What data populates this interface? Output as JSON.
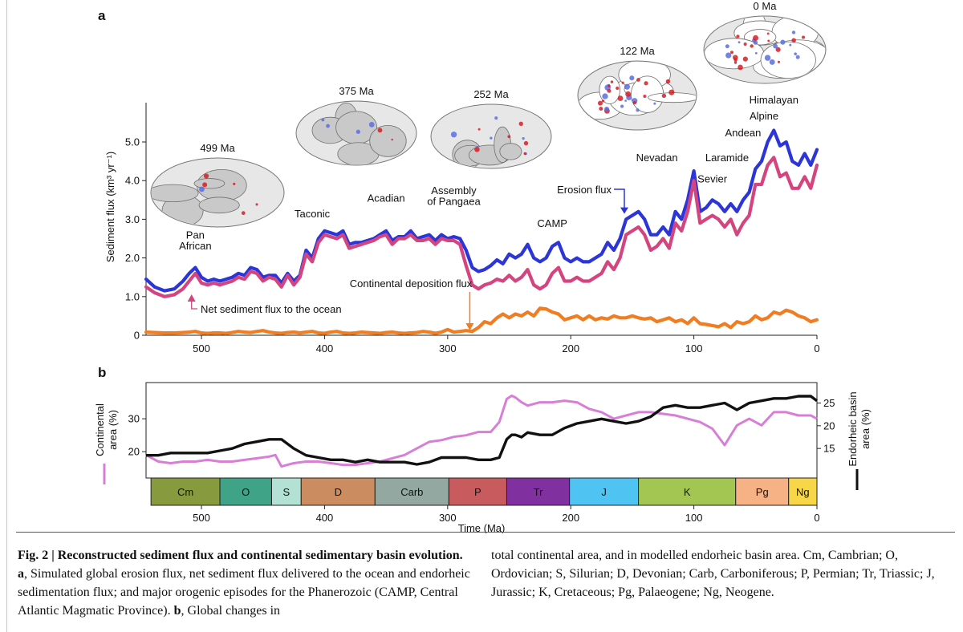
{
  "caption": {
    "lead": "Fig. 2 | Reconstructed sediment flux and continental sedimentary basin evolution.",
    "part_a_label": "a",
    "part_a_text": ", Simulated global erosion flux, net sediment flux delivered to the ocean and endorheic sedimentation flux; and major orogenic episodes for the Phanerozoic (CAMP, Central Atlantic Magmatic Province).",
    "part_b_label": "b",
    "part_b_text": ", Global changes in",
    "continued": "total continental area, and in modelled endorheic basin area. Cm, Cambrian; O, Ordovician; S, Silurian; D, Devonian; Carb, Carboniferous; P, Permian; Tr, Triassic; J, Jurassic; K, Cretaceous; Pg, Palaeogene; Ng, Neogene."
  },
  "chart_data": [
    {
      "panel": "a",
      "type": "line",
      "ylabel": "Sediment flux (km³ yr⁻¹)",
      "xlim": [
        545,
        0
      ],
      "ylim": [
        0,
        5.5
      ],
      "yticks": [
        "0",
        "1.0",
        "2.0",
        "3.0",
        "4.0",
        "5.0"
      ],
      "ytick_values": [
        0,
        1,
        2,
        3,
        4,
        5
      ],
      "xticks": [
        "500",
        "400",
        "300",
        "200",
        "100",
        "0"
      ],
      "xtick_values": [
        500,
        400,
        300,
        200,
        100,
        0
      ],
      "x": [
        545,
        538,
        530,
        522,
        515,
        510,
        505,
        500,
        495,
        490,
        485,
        480,
        475,
        470,
        465,
        460,
        455,
        450,
        445,
        440,
        435,
        430,
        425,
        420,
        415,
        410,
        405,
        400,
        395,
        390,
        385,
        380,
        375,
        370,
        365,
        360,
        355,
        350,
        345,
        340,
        335,
        330,
        325,
        320,
        315,
        310,
        305,
        300,
        295,
        290,
        285,
        280,
        275,
        270,
        265,
        260,
        255,
        250,
        245,
        240,
        235,
        230,
        225,
        220,
        215,
        210,
        205,
        200,
        195,
        190,
        185,
        180,
        175,
        170,
        165,
        160,
        155,
        150,
        145,
        140,
        135,
        130,
        125,
        120,
        115,
        110,
        105,
        100,
        95,
        90,
        85,
        80,
        75,
        70,
        65,
        60,
        55,
        50,
        45,
        40,
        35,
        30,
        25,
        20,
        15,
        10,
        5,
        0
      ],
      "series": [
        {
          "name": "Erosion flux",
          "color": "#2b35d8",
          "values": [
            1.45,
            1.25,
            1.15,
            1.2,
            1.4,
            1.6,
            1.75,
            1.5,
            1.4,
            1.45,
            1.4,
            1.45,
            1.5,
            1.6,
            1.55,
            1.75,
            1.7,
            1.5,
            1.55,
            1.55,
            1.35,
            1.6,
            1.4,
            1.55,
            2.2,
            2.0,
            2.5,
            2.7,
            2.65,
            2.6,
            2.7,
            2.35,
            2.4,
            2.4,
            2.45,
            2.5,
            2.6,
            2.7,
            2.45,
            2.55,
            2.55,
            2.7,
            2.5,
            2.55,
            2.6,
            2.45,
            2.6,
            2.5,
            2.55,
            2.5,
            2.2,
            1.75,
            1.65,
            1.7,
            1.8,
            1.95,
            1.85,
            2.1,
            2.0,
            2.1,
            2.35,
            2.0,
            1.9,
            2.0,
            2.3,
            2.4,
            2.0,
            1.9,
            2.0,
            1.9,
            1.9,
            2.0,
            2.1,
            2.4,
            2.2,
            2.5,
            3.0,
            3.1,
            3.2,
            3.0,
            2.6,
            2.6,
            2.8,
            2.6,
            3.2,
            3.0,
            3.5,
            4.25,
            3.2,
            3.3,
            3.5,
            3.4,
            3.2,
            3.4,
            3.2,
            3.5,
            3.7,
            4.3,
            4.5,
            5.0,
            5.3,
            4.9,
            5.0,
            4.5,
            4.4,
            4.7,
            4.4,
            4.8
          ]
        },
        {
          "name": "Net sediment flux to the ocean",
          "color": "#d4457f",
          "values": [
            1.25,
            1.1,
            1.0,
            1.05,
            1.2,
            1.4,
            1.6,
            1.35,
            1.3,
            1.35,
            1.3,
            1.35,
            1.4,
            1.5,
            1.45,
            1.65,
            1.6,
            1.4,
            1.5,
            1.45,
            1.25,
            1.55,
            1.3,
            1.5,
            2.1,
            1.9,
            2.4,
            2.6,
            2.55,
            2.5,
            2.6,
            2.25,
            2.3,
            2.35,
            2.4,
            2.45,
            2.55,
            2.6,
            2.35,
            2.5,
            2.5,
            2.6,
            2.45,
            2.45,
            2.5,
            2.35,
            2.5,
            2.45,
            2.45,
            2.35,
            1.8,
            1.3,
            1.2,
            1.3,
            1.35,
            1.45,
            1.4,
            1.55,
            1.4,
            1.5,
            1.7,
            1.3,
            1.2,
            1.3,
            1.6,
            1.75,
            1.4,
            1.4,
            1.5,
            1.4,
            1.4,
            1.5,
            1.6,
            1.9,
            1.7,
            2.0,
            2.6,
            2.7,
            2.8,
            2.6,
            2.2,
            2.3,
            2.5,
            2.25,
            2.9,
            2.7,
            3.2,
            4.0,
            2.9,
            3.0,
            3.1,
            3.0,
            2.8,
            3.0,
            2.6,
            2.9,
            3.1,
            3.9,
            3.9,
            4.4,
            4.6,
            4.1,
            4.2,
            3.8,
            3.8,
            4.1,
            3.8,
            4.4
          ]
        },
        {
          "name": "Continental deposition flux",
          "color": "#f07d22",
          "values": [
            0.08,
            0.07,
            0.06,
            0.06,
            0.07,
            0.08,
            0.1,
            0.06,
            0.05,
            0.06,
            0.06,
            0.05,
            0.07,
            0.1,
            0.08,
            0.07,
            0.1,
            0.12,
            0.08,
            0.06,
            0.05,
            0.07,
            0.08,
            0.06,
            0.08,
            0.1,
            0.06,
            0.05,
            0.08,
            0.1,
            0.06,
            0.05,
            0.06,
            0.08,
            0.07,
            0.06,
            0.05,
            0.07,
            0.08,
            0.06,
            0.05,
            0.06,
            0.07,
            0.1,
            0.08,
            0.05,
            0.08,
            0.15,
            0.08,
            0.1,
            0.12,
            0.1,
            0.2,
            0.35,
            0.3,
            0.45,
            0.55,
            0.45,
            0.55,
            0.5,
            0.6,
            0.5,
            0.7,
            0.68,
            0.6,
            0.55,
            0.4,
            0.45,
            0.5,
            0.4,
            0.5,
            0.4,
            0.45,
            0.42,
            0.5,
            0.45,
            0.45,
            0.5,
            0.45,
            0.42,
            0.45,
            0.35,
            0.4,
            0.45,
            0.35,
            0.4,
            0.3,
            0.45,
            0.3,
            0.28,
            0.25,
            0.22,
            0.3,
            0.2,
            0.35,
            0.3,
            0.35,
            0.5,
            0.4,
            0.45,
            0.6,
            0.55,
            0.65,
            0.6,
            0.5,
            0.45,
            0.35,
            0.4
          ]
        }
      ],
      "labels": [
        {
          "text": "Pan",
          "x": 505,
          "y": 2.5
        },
        {
          "text": "African",
          "x": 505,
          "y": 2.22
        },
        {
          "text": "Taconic",
          "x": 410,
          "y": 3.05
        },
        {
          "text": "Acadian",
          "x": 350,
          "y": 3.45
        },
        {
          "text": "Assembly",
          "x": 295,
          "y": 3.65
        },
        {
          "text": "of Pangaea",
          "x": 295,
          "y": 3.37
        },
        {
          "text": "CAMP",
          "x": 215,
          "y": 2.8
        },
        {
          "text": "Nevadan",
          "x": 130,
          "y": 4.5
        },
        {
          "text": "Sevier",
          "x": 85,
          "y": 3.95
        },
        {
          "text": "Laramide",
          "x": 73,
          "y": 4.5
        },
        {
          "text": "Andean",
          "x": 60,
          "y": 5.15
        },
        {
          "text": "Alpine",
          "x": 43,
          "y": 5.58
        },
        {
          "text": "Himalayan",
          "x": 35,
          "y": 6.0
        }
      ],
      "annotations": [
        {
          "text": "Erosion flux",
          "arrow_to": [
            155,
            3.1
          ]
        },
        {
          "text": "Net sediment flux to the ocean",
          "arrow_to": [
            510,
            1.1
          ]
        },
        {
          "text": "Continental deposition flux",
          "arrow_to": [
            282,
            0.05
          ]
        }
      ],
      "maps": [
        {
          "label": "499 Ma",
          "x": 478,
          "y": 3.65
        },
        {
          "label": "375 Ma",
          "x": 357,
          "y": 5.2
        },
        {
          "label": "252 Ma",
          "x": 250,
          "y": 5.2
        },
        {
          "label": "122 Ma",
          "x": 140,
          "y": 6.65
        },
        {
          "label": "0 Ma",
          "x": 56,
          "y": 7.5
        }
      ]
    },
    {
      "panel": "b",
      "type": "line",
      "xlabel": "Time (Ma)",
      "ylabel_left": "Continental area (%)",
      "ylabel_right": "Endorheic basin area (%)",
      "xlim": [
        545,
        0
      ],
      "ylim_left": [
        12,
        41
      ],
      "yticks_left": [
        "20",
        "30"
      ],
      "ytick_values_left": [
        20,
        30
      ],
      "ylim_right": [
        8.5,
        29.5
      ],
      "yticks_right": [
        "15",
        "20",
        "25"
      ],
      "ytick_values_right": [
        15,
        20,
        25
      ],
      "xticks": [
        "500",
        "400",
        "300",
        "200",
        "100",
        "0"
      ],
      "xtick_values": [
        500,
        400,
        300,
        200,
        100,
        0
      ],
      "x": [
        545,
        535,
        525,
        515,
        505,
        495,
        485,
        475,
        465,
        455,
        445,
        440,
        435,
        425,
        415,
        405,
        395,
        385,
        375,
        365,
        355,
        345,
        335,
        325,
        315,
        305,
        295,
        285,
        275,
        265,
        258,
        252,
        248,
        245,
        240,
        235,
        225,
        215,
        205,
        195,
        185,
        175,
        165,
        155,
        145,
        135,
        125,
        115,
        105,
        95,
        85,
        75,
        65,
        55,
        45,
        35,
        25,
        15,
        5,
        0
      ],
      "series": [
        {
          "name": "Continental area",
          "axis": "left",
          "color": "#d77fd6",
          "values": [
            19,
            17,
            16.5,
            17,
            17,
            17.5,
            17,
            17,
            17.5,
            18,
            18.5,
            19,
            15.5,
            16.5,
            17,
            17,
            16.5,
            16,
            16,
            16.5,
            17,
            18,
            19,
            21,
            23,
            23.5,
            24.5,
            25,
            26,
            26,
            29,
            36,
            37,
            36.5,
            35,
            34,
            35,
            35,
            35.5,
            35,
            33,
            32,
            30,
            31,
            32,
            32,
            31.5,
            31,
            30,
            29,
            27,
            22,
            28,
            30,
            28,
            32,
            32,
            31,
            31,
            30
          ]
        },
        {
          "name": "Endorheic basin area",
          "axis": "right",
          "color": "#111111",
          "values": [
            13.5,
            13.5,
            14,
            14,
            14,
            14,
            14.5,
            15,
            16,
            16.5,
            17,
            17,
            17,
            15,
            13.5,
            13,
            12.5,
            12.5,
            12,
            12.5,
            12,
            12,
            12,
            11.5,
            12,
            13,
            13,
            13,
            12.5,
            12.5,
            13,
            17,
            18,
            18,
            17.5,
            18.5,
            18,
            18,
            19.5,
            20.5,
            21,
            21.5,
            21,
            20.5,
            21,
            22,
            24,
            24.5,
            24,
            24,
            24.5,
            25,
            23.5,
            25,
            25.5,
            26,
            26,
            26.5,
            26.5,
            25.5
          ]
        }
      ],
      "periods": [
        {
          "label": "Cm",
          "start": 541,
          "end": 485,
          "color": "#879b3e"
        },
        {
          "label": "O",
          "start": 485,
          "end": 443,
          "color": "#3fa387"
        },
        {
          "label": "S",
          "start": 443,
          "end": 419,
          "color": "#b3e2d5"
        },
        {
          "label": "D",
          "start": 419,
          "end": 359,
          "color": "#cb8c5f"
        },
        {
          "label": "Carb",
          "start": 359,
          "end": 299,
          "color": "#93a8a1"
        },
        {
          "label": "P",
          "start": 299,
          "end": 252,
          "color": "#c85b5e"
        },
        {
          "label": "Tr",
          "start": 252,
          "end": 201,
          "color": "#80309f"
        },
        {
          "label": "J",
          "start": 201,
          "end": 145,
          "color": "#4fc3f2"
        },
        {
          "label": "K",
          "start": 145,
          "end": 66,
          "color": "#a3c653"
        },
        {
          "label": "Pg",
          "start": 66,
          "end": 23,
          "color": "#f6b185"
        },
        {
          "label": "Ng",
          "start": 23,
          "end": 0,
          "color": "#f7d747"
        }
      ]
    }
  ]
}
